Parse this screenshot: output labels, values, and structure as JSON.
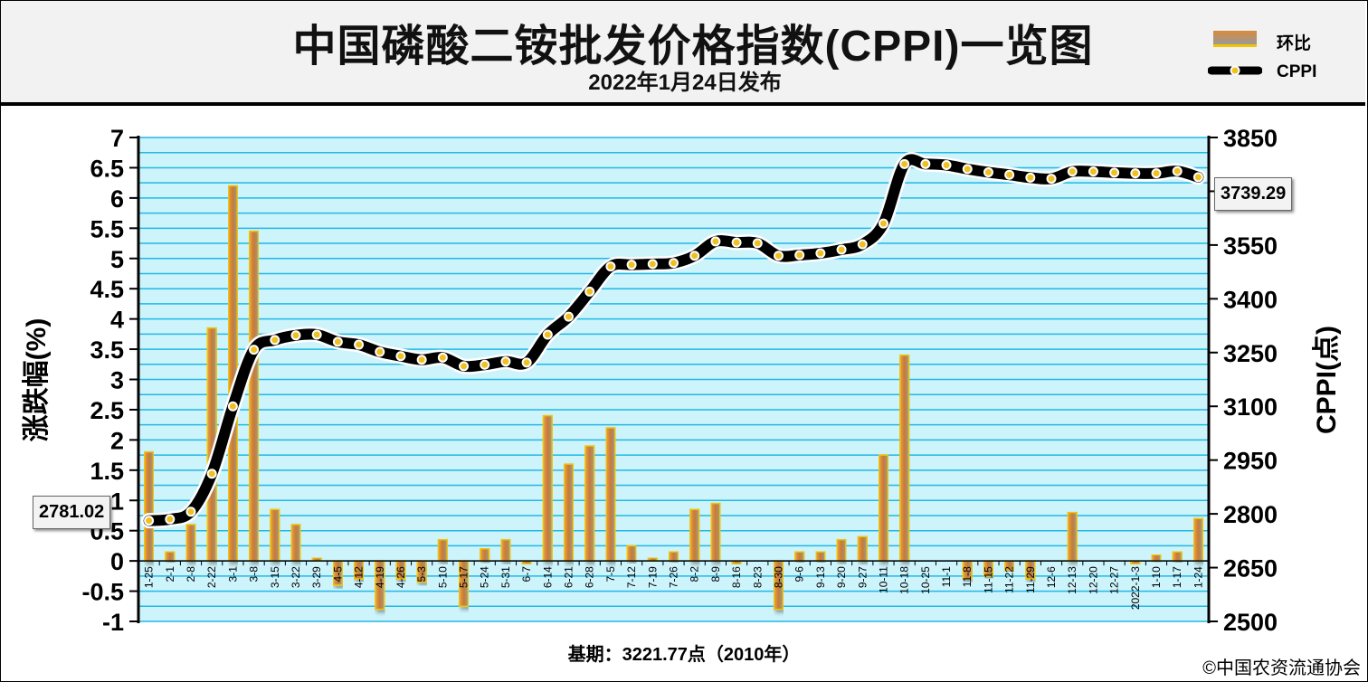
{
  "header": {
    "title": "中国磷酸二铵批发价格指数(CPPI)一览图",
    "subtitle": "2022年1月24日发布"
  },
  "legend": {
    "bar_label": "环比",
    "line_label": "CPPI"
  },
  "footer": {
    "baseline_note": "基期：3221.77点（2010年）",
    "copyright": "©中国农资流通协会"
  },
  "callouts": {
    "start_value": "2781.02",
    "end_value": "3739.29"
  },
  "colors": {
    "plot_bg": "#cdf3fb",
    "grid": "#22b8e6",
    "bar": "#d98a3c",
    "bar_edge": "#f3c400",
    "line": "#000000",
    "marker": "#f0c020"
  },
  "chart_data": {
    "type": "bar+line",
    "categories": [
      "1-25",
      "2-1",
      "2-8",
      "2-22",
      "3-1",
      "3-8",
      "3-15",
      "3-22",
      "3-29",
      "4-5",
      "4-12",
      "4-19",
      "4-26",
      "5-3",
      "5-10",
      "5-17",
      "5-24",
      "5-31",
      "6-7",
      "6-14",
      "6-21",
      "6-28",
      "7-5",
      "7-12",
      "7-19",
      "7-26",
      "8-2",
      "8-9",
      "8-16",
      "8-23",
      "8-30",
      "9-6",
      "9-13",
      "9-20",
      "9-27",
      "10-11",
      "10-18",
      "10-25",
      "11-1",
      "11-8",
      "11-15",
      "11-22",
      "11-29",
      "12-6",
      "12-13",
      "12-20",
      "12-27",
      "2022-1-3",
      "1-10",
      "1-17",
      "1-24"
    ],
    "series": [
      {
        "name": "环比",
        "axis": "left",
        "type": "bar",
        "values": [
          1.8,
          0.15,
          0.6,
          3.85,
          6.2,
          5.45,
          0.85,
          0.6,
          0.05,
          -0.4,
          -0.3,
          -0.8,
          -0.3,
          -0.35,
          0.35,
          -0.75,
          0.2,
          0.35,
          -0.05,
          2.4,
          1.6,
          1.9,
          2.2,
          0.25,
          0.05,
          0.15,
          0.85,
          0.95,
          -0.05,
          0,
          -0.8,
          0.15,
          0.15,
          0.35,
          0.4,
          1.75,
          3.4,
          0,
          0,
          -0.3,
          -0.25,
          -0.15,
          -0.3,
          0,
          0.8,
          0,
          0,
          -0.05,
          0.1,
          0.15,
          0.7
        ]
      },
      {
        "name": "CPPI",
        "axis": "right",
        "type": "line",
        "values": [
          2781.02,
          2785,
          2806,
          2912,
          3100,
          3258,
          3285,
          3298,
          3300,
          3280,
          3272,
          3252,
          3240,
          3230,
          3236,
          3212,
          3216,
          3225,
          3222,
          3300,
          3350,
          3420,
          3490,
          3495,
          3497,
          3500,
          3520,
          3560,
          3557,
          3555,
          3520,
          3522,
          3527,
          3537,
          3552,
          3610,
          3776,
          3776,
          3773,
          3762,
          3753,
          3746,
          3738,
          3735,
          3755,
          3755,
          3752,
          3750,
          3750,
          3756,
          3739.29
        ]
      }
    ],
    "left_axis": {
      "label": "涨跌幅(%)",
      "min": -1,
      "max": 7,
      "step": 0.5,
      "ticks": [
        "-1",
        "-0.5",
        "0",
        "0.5",
        "1",
        "1.5",
        "2",
        "2.5",
        "3",
        "3.5",
        "4",
        "4.5",
        "5",
        "5.5",
        "6",
        "6.5",
        "7"
      ]
    },
    "right_axis": {
      "label": "CPPI(点)",
      "min": 2500,
      "max": 3850,
      "ticks": [
        2500,
        2650,
        2800,
        2950,
        3100,
        3250,
        3400,
        3550,
        3700,
        3850
      ]
    },
    "grid": true,
    "legend_position": "top-right"
  }
}
